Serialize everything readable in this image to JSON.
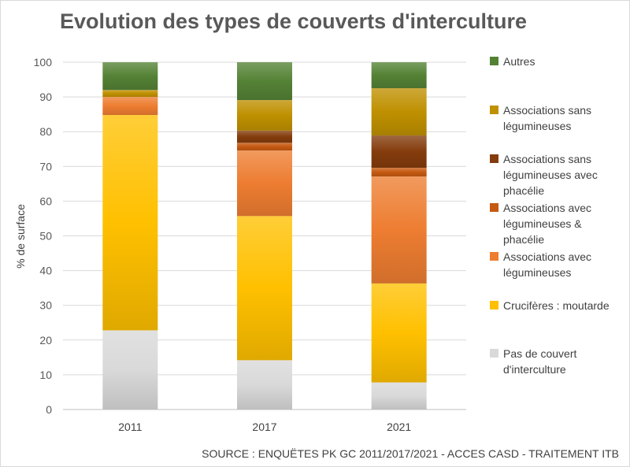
{
  "title": "Evolution des types de couverts d'interculture",
  "source": "SOURCE : ENQUËTES PK GC 2011/2017/2021 - ACCES CASD - TRAITEMENT ITB",
  "chart_data": {
    "type": "bar",
    "stacked": true,
    "title": "Evolution des types de couverts d'interculture",
    "xlabel": "",
    "ylabel": "% de surface",
    "ylim": [
      0,
      100
    ],
    "yticks": [
      0,
      10,
      20,
      30,
      40,
      50,
      60,
      70,
      80,
      90,
      100
    ],
    "grid": true,
    "legend_position": "right",
    "categories": [
      "2011",
      "2017",
      "2021"
    ],
    "series": [
      {
        "name": "Pas de couvert d'interculture",
        "values": [
          22.8,
          14.2,
          7.8
        ],
        "color": "#d9d9d9"
      },
      {
        "name": "Crucifères : moutarde",
        "values": [
          62.0,
          41.5,
          28.5
        ],
        "color": "#ffc000"
      },
      {
        "name": "Associations avec légumineuses",
        "values": [
          5.2,
          18.9,
          30.8
        ],
        "color": "#ed7d31"
      },
      {
        "name": "Associations avec légumineuses & phacélie",
        "values": [
          0.0,
          2.2,
          2.5
        ],
        "color": "#c55a11"
      },
      {
        "name": "Associations sans légumineuses avec phacélie",
        "values": [
          0.0,
          3.5,
          9.3
        ],
        "color": "#843c0c"
      },
      {
        "name": "Associations sans légumineuses",
        "values": [
          2.0,
          8.8,
          13.6
        ],
        "color": "#bf9000"
      },
      {
        "name": "Autres",
        "values": [
          8.0,
          10.9,
          7.5
        ],
        "color": "#548235"
      }
    ]
  }
}
